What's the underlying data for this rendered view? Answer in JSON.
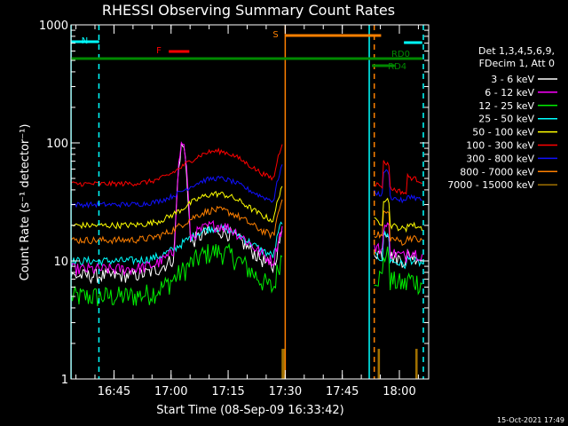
{
  "chart_data": {
    "type": "line",
    "title": "RHESSI Observing Summary Count Rates",
    "xlabel": "Start Time (08-Sep-09 16:33:42)",
    "ylabel": "Count Rate (s⁻¹ detector⁻¹)",
    "yscale": "log",
    "ylim": [
      1,
      1000
    ],
    "xlim": [
      16.5617,
      18.1283
    ],
    "y_ticks": [
      "1",
      "10",
      "100",
      "1000"
    ],
    "x_ticks": [
      {
        "t": 16.75,
        "label": "16:45"
      },
      {
        "t": 17.0,
        "label": "17:00"
      },
      {
        "t": 17.25,
        "label": "17:15"
      },
      {
        "t": 17.5,
        "label": "17:30"
      },
      {
        "t": 17.75,
        "label": "17:45"
      },
      {
        "t": 18.0,
        "label": "18:00"
      }
    ],
    "legend_header": [
      "Det 1,3,4,5,6,9,",
      "FDecim 1, Att 0"
    ],
    "series": [
      {
        "name": "3 - 6 keV",
        "color": "#ffffff",
        "base": 7.5,
        "peak": 18,
        "post": 12,
        "flare": 95,
        "jitter": 0.14
      },
      {
        "name": "6 - 12 keV",
        "color": "#ff00ff",
        "base": 8.5,
        "peak": 20,
        "post": 13,
        "flare": 100,
        "jitter": 0.12
      },
      {
        "name": "12 - 25 keV",
        "color": "#00ee00",
        "base": 5,
        "peak": 12,
        "post": 7.5,
        "flare": 0,
        "jitter": 0.22
      },
      {
        "name": "25 - 50 keV",
        "color": "#00ffff",
        "base": 10,
        "peak": 19,
        "post": 11,
        "flare": 0,
        "jitter": 0.08
      },
      {
        "name": "50 - 100 keV",
        "color": "#ffff00",
        "base": 20,
        "peak": 37,
        "post": 22,
        "flare": 0,
        "jitter": 0.06
      },
      {
        "name": "100 - 300 keV",
        "color": "#ff0000",
        "base": 45,
        "peak": 85,
        "post": 45,
        "flare": 0,
        "jitter": 0.05
      },
      {
        "name": "300 - 800 keV",
        "color": "#1010ff",
        "base": 30,
        "peak": 50,
        "post": 38,
        "flare": 0,
        "jitter": 0.05
      },
      {
        "name": "800 - 7000 keV",
        "color": "#ff8000",
        "base": 15,
        "peak": 27,
        "post": 17,
        "flare": 0,
        "jitter": 0.07
      },
      {
        "name": "7000 - 15000 keV",
        "color": "#a07000",
        "base": 0,
        "peak": 0,
        "post": 0,
        "flare": 0,
        "jitter": 0
      }
    ],
    "data_intervals": [
      [
        16.5617,
        17.487
      ],
      [
        17.89,
        18.1
      ]
    ],
    "flags": [
      {
        "label": "N",
        "color": "#00ffff",
        "start": 16.562,
        "end": 16.685
      },
      {
        "label": "F",
        "color": "#ff0000",
        "start": 16.99,
        "end": 17.08
      },
      {
        "label": "S",
        "color": "#ff8000",
        "start": 17.5,
        "end": 17.92
      },
      {
        "label": "",
        "color": "#00ffff",
        "start": 18.02,
        "end": 18.1
      },
      {
        "label": "RD0",
        "color": "#008800",
        "start": 17.895,
        "end": 18.1
      },
      {
        "label": "RD4",
        "color": "#008800",
        "start": 17.88,
        "end": 17.98
      },
      {
        "label": "",
        "color": "#008800",
        "start": 16.562,
        "end": 18.1
      }
    ],
    "markers": [
      {
        "t": 16.562,
        "color": "#00ffff",
        "style": "solid"
      },
      {
        "t": 16.684,
        "color": "#00ffff",
        "style": "dashed"
      },
      {
        "t": 17.5,
        "color": "#ff8000",
        "style": "solid"
      },
      {
        "t": 17.868,
        "color": "#00ffff",
        "style": "solid"
      },
      {
        "t": 17.89,
        "color": "#ff8000",
        "style": "dashed"
      },
      {
        "t": 18.105,
        "color": "#00ffff",
        "style": "dashed"
      }
    ]
  },
  "timestamp": "15-Oct-2021 17:49"
}
